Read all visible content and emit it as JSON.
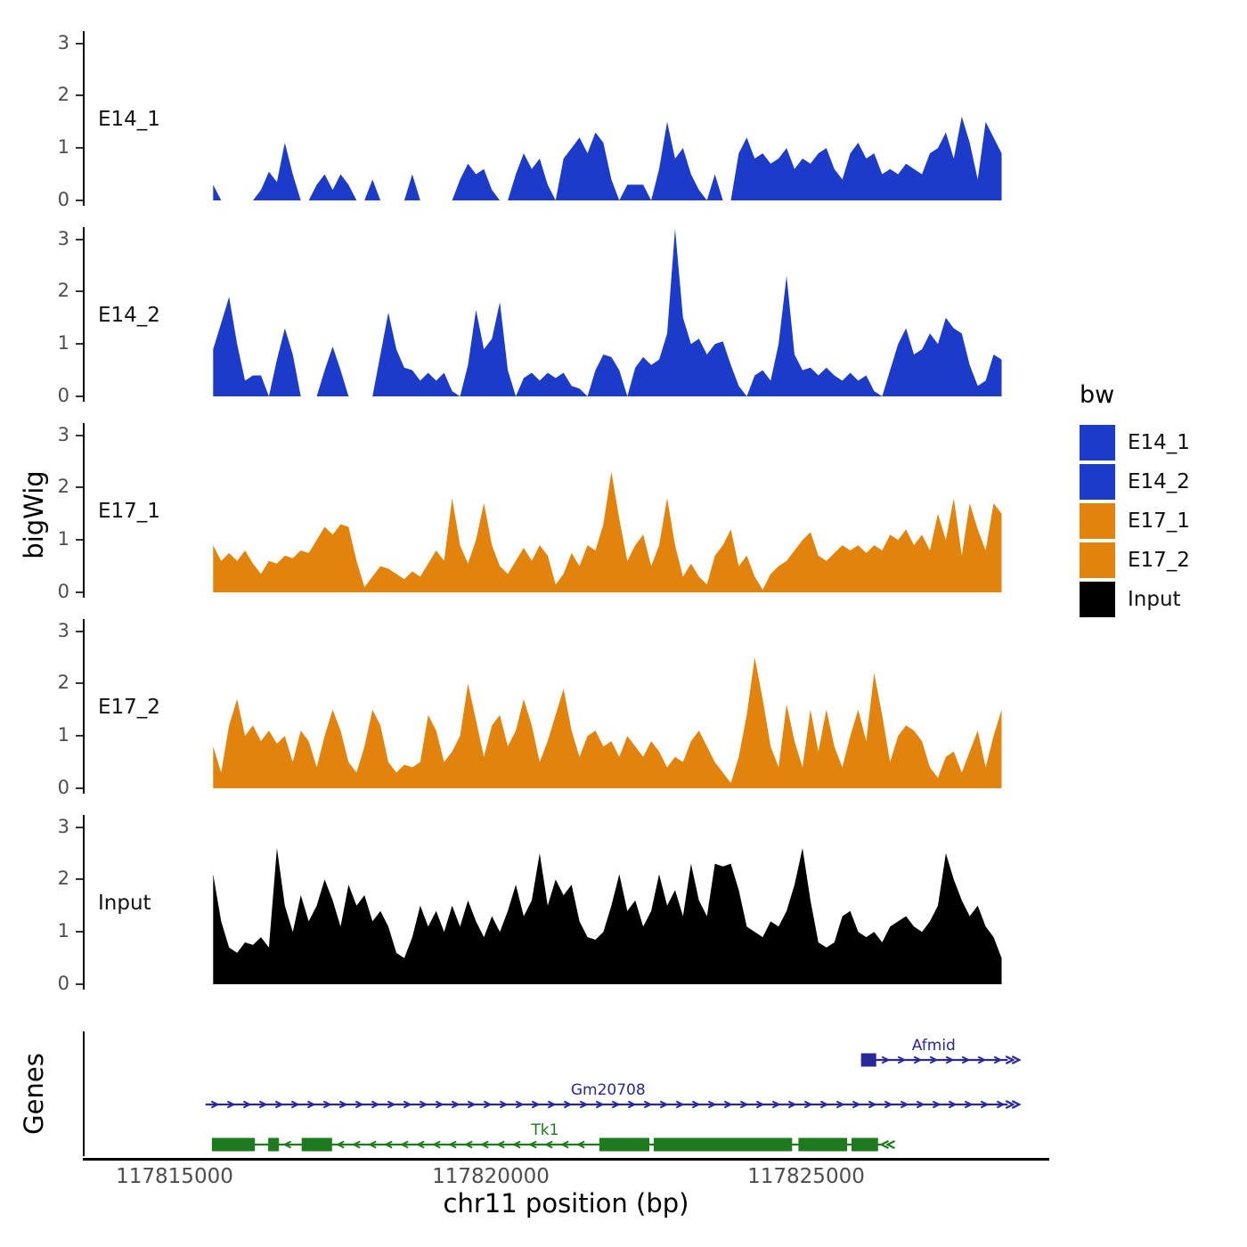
{
  "figure": {
    "ylab": "bigWig",
    "xlab": "chr11 position (bp)",
    "genes_label": "Genes"
  },
  "legend": {
    "title": "bw",
    "position": "right",
    "items": [
      {
        "label": "E14_1",
        "color": "#1C3BC8"
      },
      {
        "label": "E14_2",
        "color": "#1C3BC8"
      },
      {
        "label": "E17_1",
        "color": "#E2830E"
      },
      {
        "label": "E17_2",
        "color": "#E2830E"
      },
      {
        "label": "Input",
        "color": "#000000"
      }
    ]
  },
  "axis": {
    "x_domain": [
      117813580,
      117828800
    ],
    "x_ticks": [
      117815000,
      117820000,
      117825000
    ],
    "x_tick_labels": [
      "117815000",
      "117820000",
      "117825000"
    ],
    "y_ticks": [
      0,
      1,
      2,
      3
    ],
    "y_max": 3.3
  },
  "chart_data": {
    "type": "area",
    "title": "",
    "xlabel": "chr11 position (bp)",
    "ylabel": "bigWig",
    "grid": false,
    "legend_position": "right",
    "ylim": [
      0,
      3.3
    ],
    "x_start": 117815600,
    "x_step": 126,
    "series": [
      {
        "name": "E14_1",
        "color": "#1C3BC8",
        "values": [
          0.3,
          0,
          0,
          0,
          0,
          0,
          0.2,
          0.55,
          0.35,
          1.1,
          0.5,
          0,
          0,
          0.3,
          0.5,
          0.2,
          0.5,
          0.3,
          0,
          0,
          0.4,
          0,
          0,
          0,
          0,
          0.5,
          0,
          0,
          0,
          0,
          0,
          0.4,
          0.7,
          0.5,
          0.6,
          0.2,
          0,
          0,
          0.5,
          0.9,
          0.6,
          0.8,
          0.3,
          0,
          0.8,
          1.0,
          1.2,
          0.9,
          1.3,
          1.1,
          0.4,
          0,
          0.3,
          0.3,
          0.3,
          0,
          0.6,
          1.5,
          0.8,
          1.0,
          0.5,
          0.2,
          0,
          0.5,
          0,
          0,
          0.9,
          1.2,
          0.8,
          0.9,
          0.7,
          0.8,
          1.0,
          0.6,
          0.8,
          0.7,
          0.9,
          1.0,
          0.6,
          0.4,
          0.9,
          1.1,
          0.8,
          0.9,
          0.5,
          0.6,
          0.5,
          0.7,
          0.6,
          0.5,
          0.9,
          1.0,
          1.3,
          0.8,
          1.6,
          1.1,
          0.4,
          1.5,
          1.2,
          0.9
        ]
      },
      {
        "name": "E14_2",
        "color": "#1C3BC8",
        "values": [
          0.9,
          1.4,
          1.9,
          1.0,
          0.3,
          0.4,
          0.4,
          0,
          0.7,
          1.3,
          0.8,
          0,
          0,
          0,
          0.5,
          0.95,
          0.5,
          0,
          0,
          0,
          0,
          0.8,
          1.6,
          0.9,
          0.55,
          0.5,
          0.3,
          0.45,
          0.3,
          0.45,
          0.1,
          0,
          0.6,
          1.65,
          0.9,
          1.1,
          1.8,
          0.5,
          0,
          0.35,
          0.45,
          0.3,
          0.45,
          0.35,
          0.45,
          0.2,
          0.15,
          0,
          0.5,
          0.8,
          0.75,
          0.5,
          0,
          0.55,
          0.75,
          0.6,
          0.7,
          1.2,
          3.2,
          1.5,
          1.0,
          1.1,
          0.8,
          1.0,
          1.05,
          0.6,
          0.2,
          0,
          0.4,
          0.5,
          0.3,
          1.0,
          2.3,
          0.8,
          0.5,
          0.55,
          0.4,
          0.55,
          0.4,
          0.3,
          0.45,
          0.3,
          0.4,
          0.1,
          0,
          0.5,
          1.0,
          1.3,
          0.8,
          0.9,
          1.2,
          1.0,
          1.5,
          1.3,
          1.2,
          0.6,
          0.2,
          0.3,
          0.8,
          0.7
        ]
      },
      {
        "name": "E17_1",
        "color": "#E2830E",
        "values": [
          0.9,
          0.6,
          0.75,
          0.6,
          0.8,
          0.55,
          0.35,
          0.6,
          0.55,
          0.7,
          0.65,
          0.8,
          0.75,
          1.0,
          1.25,
          1.1,
          1.3,
          1.25,
          0.6,
          0.1,
          0.3,
          0.5,
          0.45,
          0.35,
          0.25,
          0.4,
          0.3,
          0.55,
          0.8,
          0.6,
          1.8,
          0.9,
          0.55,
          1.0,
          1.7,
          0.9,
          0.5,
          0.35,
          0.6,
          0.85,
          0.6,
          0.9,
          0.7,
          0.15,
          0.35,
          0.75,
          0.5,
          0.9,
          0.8,
          1.3,
          2.3,
          1.4,
          0.6,
          0.9,
          1.1,
          0.5,
          0.9,
          1.8,
          0.9,
          0.3,
          0.55,
          0.3,
          0.15,
          0.7,
          0.9,
          1.2,
          0.5,
          0.7,
          0.3,
          0.05,
          0.35,
          0.5,
          0.6,
          0.8,
          1.0,
          1.15,
          0.7,
          0.6,
          0.75,
          0.9,
          0.8,
          0.9,
          0.75,
          0.9,
          0.8,
          1.1,
          1.0,
          1.2,
          0.9,
          1.1,
          0.8,
          1.5,
          1.0,
          1.8,
          0.7,
          1.7,
          1.2,
          0.8,
          1.7,
          1.5
        ]
      },
      {
        "name": "E17_2",
        "color": "#E2830E",
        "values": [
          0.8,
          0.3,
          1.2,
          1.7,
          1.0,
          1.2,
          0.9,
          1.1,
          0.85,
          1.0,
          0.5,
          1.1,
          0.9,
          0.4,
          1.0,
          1.5,
          1.1,
          0.5,
          0.3,
          0.8,
          1.5,
          1.2,
          0.5,
          0.3,
          0.45,
          0.4,
          0.5,
          1.4,
          1.1,
          0.5,
          0.7,
          1.0,
          2.0,
          1.3,
          0.6,
          1.2,
          1.4,
          0.8,
          1.1,
          1.7,
          1.2,
          0.5,
          0.9,
          1.4,
          1.9,
          1.1,
          0.6,
          1.0,
          1.1,
          0.8,
          0.9,
          0.6,
          1.0,
          0.8,
          0.6,
          0.9,
          0.7,
          0.4,
          0.6,
          0.5,
          0.9,
          1.1,
          0.8,
          0.5,
          0.3,
          0.1,
          0.6,
          1.4,
          2.5,
          1.7,
          0.8,
          0.4,
          1.6,
          0.9,
          0.4,
          1.5,
          0.7,
          1.5,
          0.8,
          0.4,
          1.0,
          1.5,
          0.9,
          2.2,
          1.4,
          0.5,
          1.0,
          1.2,
          1.1,
          0.9,
          0.4,
          0.2,
          0.6,
          0.7,
          0.3,
          0.7,
          1.1,
          0.4,
          1.0,
          1.5
        ]
      },
      {
        "name": "Input",
        "color": "#000000",
        "values": [
          2.1,
          1.2,
          0.7,
          0.6,
          0.8,
          0.75,
          0.9,
          0.7,
          2.6,
          1.5,
          1.0,
          1.7,
          1.2,
          1.5,
          2.0,
          1.6,
          1.1,
          1.9,
          1.5,
          1.7,
          1.2,
          1.4,
          1.1,
          0.6,
          0.5,
          0.9,
          1.5,
          1.1,
          1.4,
          1.0,
          1.5,
          1.1,
          1.6,
          1.2,
          0.9,
          1.3,
          1.0,
          1.4,
          1.9,
          1.3,
          1.6,
          2.5,
          1.5,
          2.0,
          1.7,
          1.9,
          1.2,
          0.9,
          0.85,
          1.0,
          1.5,
          2.1,
          1.4,
          1.6,
          1.1,
          1.4,
          2.1,
          1.5,
          1.8,
          1.3,
          2.3,
          1.6,
          1.3,
          2.3,
          2.25,
          2.3,
          1.8,
          1.1,
          1.0,
          0.9,
          1.2,
          1.1,
          1.4,
          1.9,
          2.6,
          1.6,
          0.8,
          0.7,
          0.8,
          1.3,
          1.4,
          1.0,
          0.9,
          1.0,
          0.8,
          1.1,
          1.2,
          1.3,
          1.1,
          1.0,
          1.2,
          1.5,
          2.5,
          2.0,
          1.6,
          1.3,
          1.5,
          1.1,
          0.9,
          0.5
        ]
      }
    ],
    "genes": [
      {
        "name": "Afmid",
        "strand": "+",
        "color": "#28289B",
        "start": 117825850,
        "end": 117828170,
        "label_bp": 117827000,
        "exons": [
          [
            117825850,
            117826090
          ]
        ]
      },
      {
        "name": "Gm20708",
        "strand": "+",
        "color": "#28289B",
        "start": 117815480,
        "end": 117828170,
        "label_bp": 117821850,
        "exons": []
      },
      {
        "name": "Tk1",
        "strand": "-",
        "color": "#1E7A1E",
        "start": 117815580,
        "end": 117826200,
        "label_bp": 117820850,
        "exons": [
          [
            117815580,
            117816260
          ],
          [
            117816470,
            117816640
          ],
          [
            117817000,
            117817480
          ],
          [
            117821710,
            117822500
          ],
          [
            117822570,
            117824760
          ],
          [
            117824860,
            117825630
          ],
          [
            117825700,
            117826120
          ]
        ]
      }
    ]
  }
}
